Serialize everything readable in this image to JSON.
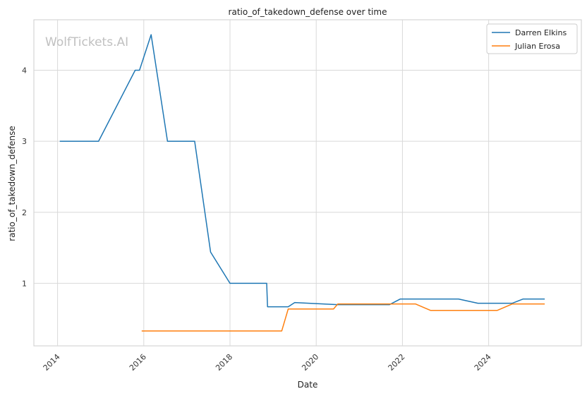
{
  "chart_data": {
    "type": "line",
    "title": "ratio_of_takedown_defense over time",
    "xlabel": "Date",
    "ylabel": "ratio_of_takedown_defense",
    "watermark": "WolfTickets.AI",
    "xlim": [
      2013.45,
      2026.15
    ],
    "ylim": [
      0.12,
      4.71
    ],
    "x_ticks": [
      2014,
      2016,
      2018,
      2020,
      2022,
      2024
    ],
    "x_tick_labels": [
      "2014",
      "2016",
      "2018",
      "2020",
      "2022",
      "2024"
    ],
    "y_ticks": [
      1,
      2,
      3,
      4
    ],
    "y_tick_labels": [
      "1",
      "2",
      "3",
      "4"
    ],
    "grid": true,
    "legend_position": "top-right",
    "series": [
      {
        "name": "Darren Elkins",
        "color": "#1f77b4",
        "x": [
          2014.05,
          2014.95,
          2015.8,
          2015.9,
          2016.17,
          2016.55,
          2017.18,
          2017.55,
          2018.0,
          2018.85,
          2018.87,
          2019.35,
          2019.5,
          2020.5,
          2021.7,
          2021.95,
          2023.3,
          2023.75,
          2024.55,
          2024.8,
          2025.3
        ],
        "y": [
          3.0,
          3.0,
          4.0,
          4.0,
          4.5,
          3.0,
          3.0,
          1.44,
          1.0,
          1.0,
          0.67,
          0.67,
          0.73,
          0.7,
          0.7,
          0.78,
          0.78,
          0.72,
          0.72,
          0.78,
          0.78
        ]
      },
      {
        "name": "Julian Erosa",
        "color": "#ff7f0e",
        "x": [
          2015.95,
          2019.2,
          2019.35,
          2020.4,
          2020.5,
          2022.3,
          2022.65,
          2024.2,
          2024.55,
          2025.3
        ],
        "y": [
          0.33,
          0.33,
          0.64,
          0.64,
          0.71,
          0.71,
          0.62,
          0.62,
          0.71,
          0.71
        ]
      }
    ]
  }
}
